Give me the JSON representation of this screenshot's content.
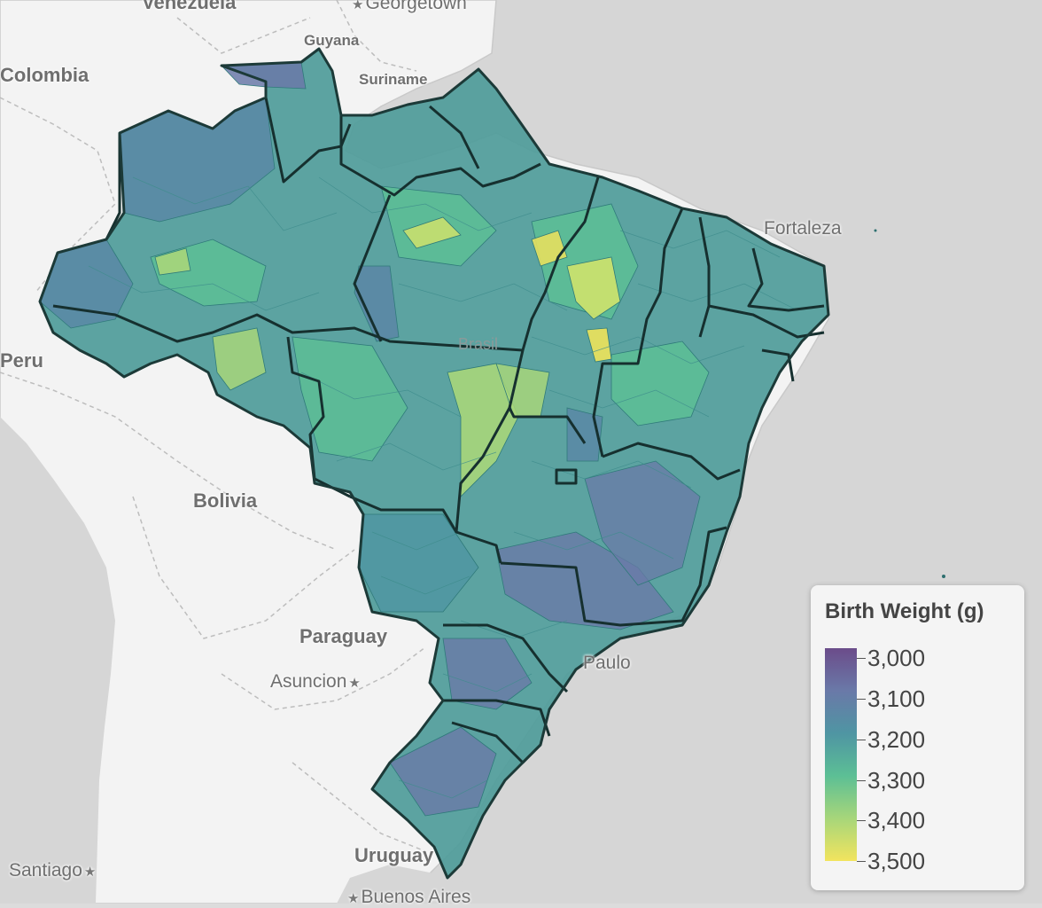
{
  "basemap": {
    "ocean_color": "#d4d4d4",
    "land_color": "#f2f2f2",
    "countries": [
      "Venezuela",
      "Colombia",
      "Guyana",
      "Suriname",
      "Peru",
      "Bolivia",
      "Paraguay",
      "Uruguay"
    ],
    "cities": [
      "Georgetown",
      "Fortaleza",
      "Paulo",
      "Asuncion",
      "Santiago",
      "Buenos Aires"
    ],
    "partial_label": "Brasil"
  },
  "legend": {
    "title": "Birth Weight (g)",
    "ticks": [
      {
        "value": 3000,
        "label": "3,000"
      },
      {
        "value": 3100,
        "label": "3,100"
      },
      {
        "value": 3200,
        "label": "3,200"
      },
      {
        "value": 3300,
        "label": "3,300"
      },
      {
        "value": 3400,
        "label": "3,400"
      },
      {
        "value": 3500,
        "label": "3,500"
      }
    ],
    "range": [
      2975,
      3500
    ],
    "palette": [
      "#6b4c8a",
      "#6a79a8",
      "#4f95a3",
      "#5cbf95",
      "#a7d67a",
      "#f2e45e"
    ]
  },
  "choropleth": {
    "variable": "Birth Weight (g)",
    "region": "Brazil",
    "units": "municipalities"
  }
}
